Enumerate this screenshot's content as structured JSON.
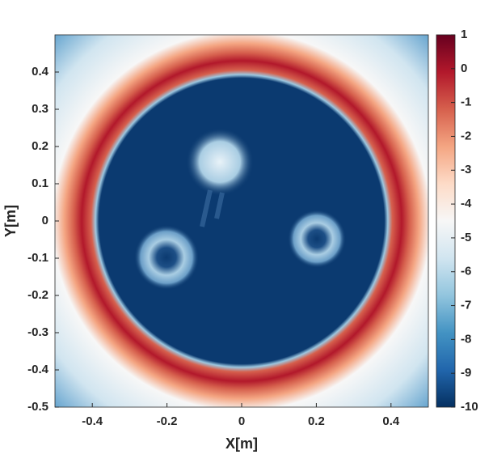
{
  "chart_data": {
    "type": "heatmap",
    "x_label": "X[m]",
    "y_label": "Y[m]",
    "xlim": [
      -0.5,
      0.5
    ],
    "ylim": [
      -0.5,
      0.5
    ],
    "xticks": [
      -0.4,
      -0.2,
      0,
      0.2,
      0.4
    ],
    "yticks": [
      -0.5,
      -0.4,
      -0.3,
      -0.2,
      -0.1,
      0,
      0.1,
      0.2,
      0.3,
      0.4
    ],
    "colorbar": {
      "lim": [
        -10,
        1
      ],
      "ticks": [
        -10,
        -9,
        -8,
        -7,
        -6,
        -5,
        -4,
        -3,
        -2,
        -1,
        0,
        1
      ],
      "colormap": [
        "#053061",
        "#2166ac",
        "#4393c3",
        "#92c5de",
        "#d1e5f0",
        "#f7f7f7",
        "#fddbc7",
        "#f4a582",
        "#d6604d",
        "#b2182b",
        "#67001f"
      ]
    }
  }
}
